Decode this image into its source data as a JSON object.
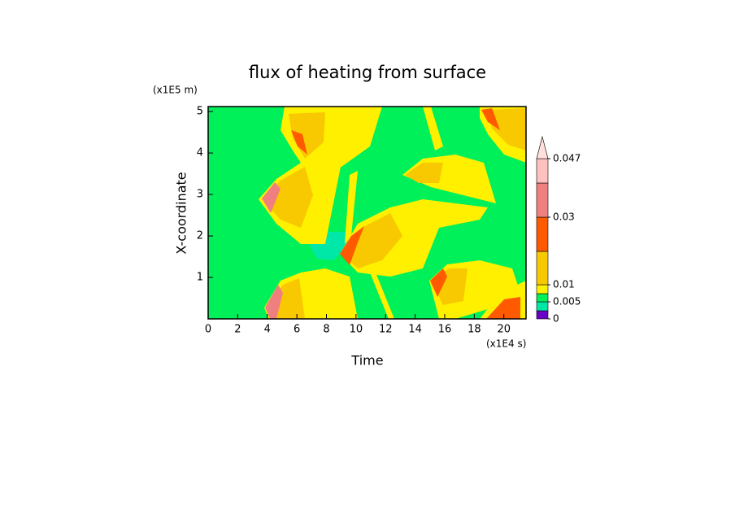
{
  "chart_data": {
    "type": "contour",
    "title": "flux of heating from surface",
    "x_label": "Time",
    "y_label": "X-coordinate",
    "x_unit": "(x1E4 s)",
    "y_unit": "(x1E5 m)",
    "xlim": [
      0,
      21.5
    ],
    "ylim": [
      0,
      5.12
    ],
    "xticks": [
      0,
      2,
      4,
      6,
      8,
      10,
      12,
      14,
      16,
      18,
      20
    ],
    "yticks": [
      1,
      2,
      3,
      4,
      5
    ],
    "colorbar": {
      "ticks": [
        0,
        0.005,
        0.01,
        0.03,
        0.047
      ],
      "colors": [
        "#6a00c8",
        "#00e8a8",
        "#00f05a",
        "#fff000",
        "#f8c800",
        "#ff5a00",
        "#f08080",
        "#ffc0c0",
        "#ffe0dc"
      ]
    }
  }
}
